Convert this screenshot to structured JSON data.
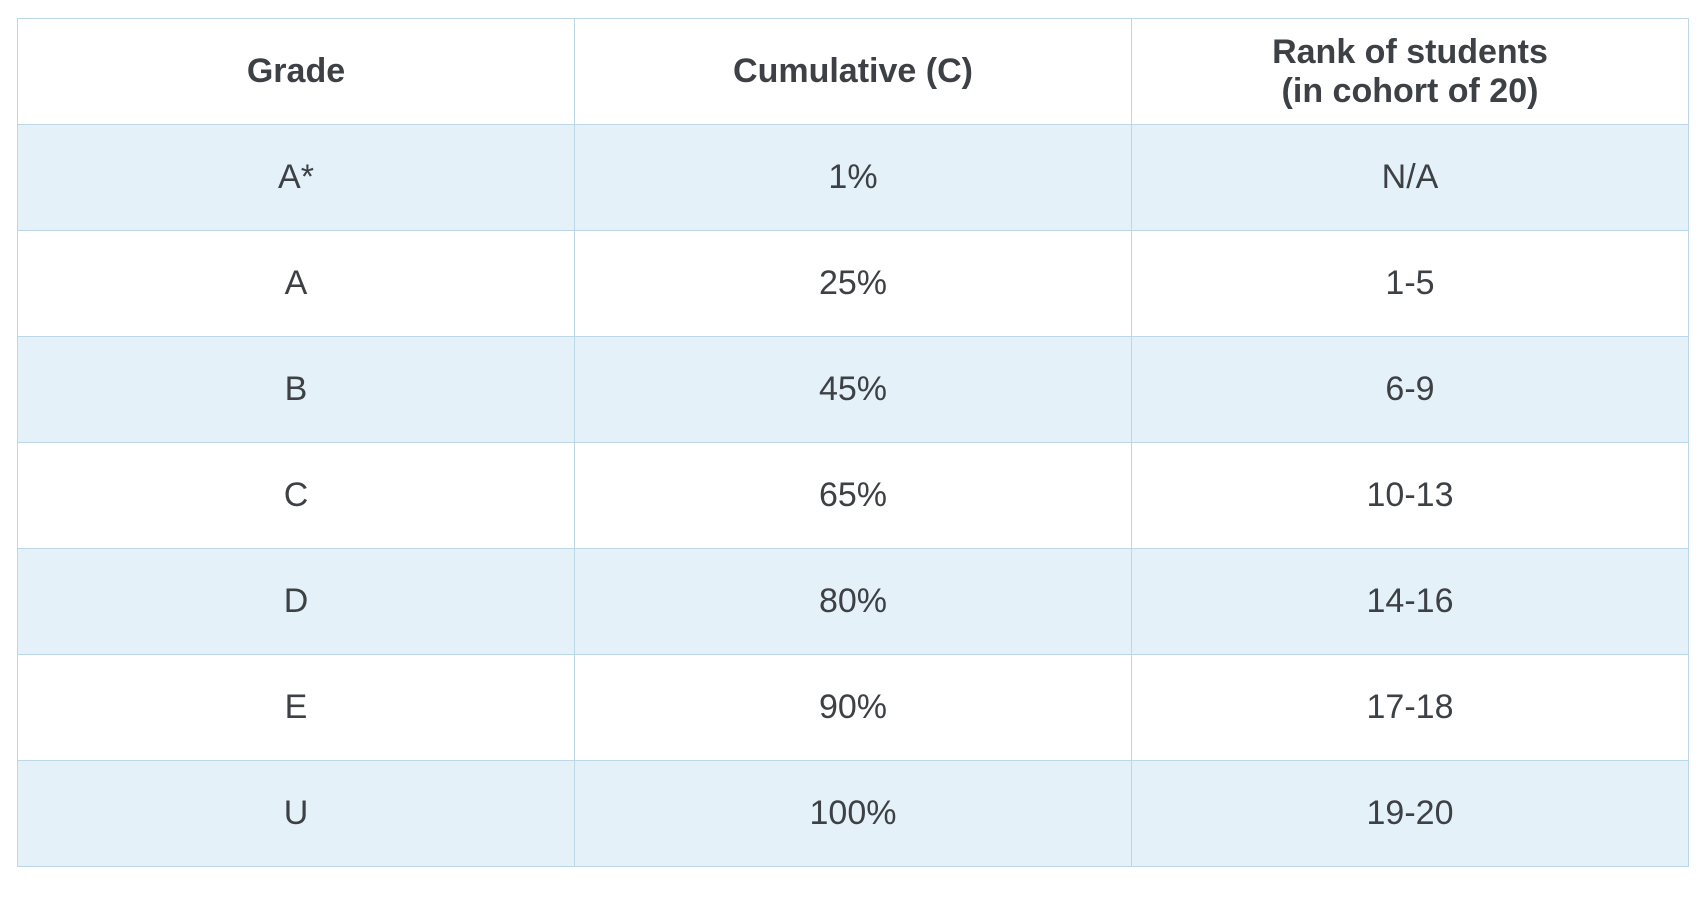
{
  "table": {
    "headers": {
      "grade": "Grade",
      "cumulative": "Cumulative (C)",
      "rank_line1": "Rank of students",
      "rank_line2": "(in cohort of 20)"
    },
    "rows": [
      {
        "grade": "A*",
        "cumulative": "1%",
        "rank": "N/A"
      },
      {
        "grade": "A",
        "cumulative": "25%",
        "rank": "1-5"
      },
      {
        "grade": "B",
        "cumulative": "45%",
        "rank": "6-9"
      },
      {
        "grade": "C",
        "cumulative": "65%",
        "rank": "10-13"
      },
      {
        "grade": "D",
        "cumulative": "80%",
        "rank": "14-16"
      },
      {
        "grade": "E",
        "cumulative": "90%",
        "rank": "17-18"
      },
      {
        "grade": "U",
        "cumulative": "100%",
        "rank": "19-20"
      }
    ]
  },
  "colors": {
    "border": "#bcd7e8",
    "stripe": "#e5f1f8",
    "text": "#3d4145"
  }
}
